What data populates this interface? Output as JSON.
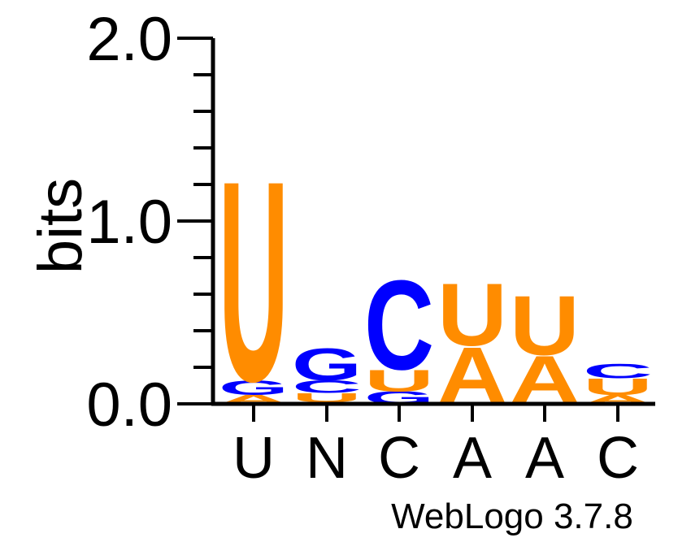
{
  "chart_data": {
    "type": "sequence-logo",
    "ylabel": "bits",
    "ylim": [
      0,
      2.0
    ],
    "y_ticks": [
      {
        "value": 0.0,
        "label": "0.0"
      },
      {
        "value": 1.0,
        "label": "1.0"
      },
      {
        "value": 2.0,
        "label": "2.0"
      }
    ],
    "y_minor_step": 0.2,
    "positions": [
      {
        "label": "U",
        "stack": [
          {
            "letter": "A",
            "bits": 0.05
          },
          {
            "letter": "G",
            "bits": 0.08
          },
          {
            "letter": "U",
            "bits": 1.12
          }
        ]
      },
      {
        "label": "N",
        "stack": [
          {
            "letter": "A",
            "bits": 0.01
          },
          {
            "letter": "U",
            "bits": 0.05
          },
          {
            "letter": "C",
            "bits": 0.07
          },
          {
            "letter": "G",
            "bits": 0.18
          }
        ]
      },
      {
        "label": "C",
        "stack": [
          {
            "letter": "G",
            "bits": 0.07
          },
          {
            "letter": "U",
            "bits": 0.12
          },
          {
            "letter": "C",
            "bits": 0.5
          }
        ]
      },
      {
        "label": "A",
        "stack": [
          {
            "letter": "C",
            "bits": 0.01
          },
          {
            "letter": "A",
            "bits": 0.31
          },
          {
            "letter": "U",
            "bits": 0.35
          }
        ]
      },
      {
        "label": "A",
        "stack": [
          {
            "letter": "C",
            "bits": 0.01
          },
          {
            "letter": "A",
            "bits": 0.26
          },
          {
            "letter": "U",
            "bits": 0.33
          }
        ]
      },
      {
        "label": "C",
        "stack": [
          {
            "letter": "A",
            "bits": 0.05
          },
          {
            "letter": "U",
            "bits": 0.09
          },
          {
            "letter": "C",
            "bits": 0.08
          }
        ]
      }
    ],
    "colors": {
      "U": "#ff8c00",
      "A": "#ff8c00",
      "C": "#0000ff",
      "G": "#0000ff"
    }
  },
  "credit": "WebLogo 3.7.8"
}
